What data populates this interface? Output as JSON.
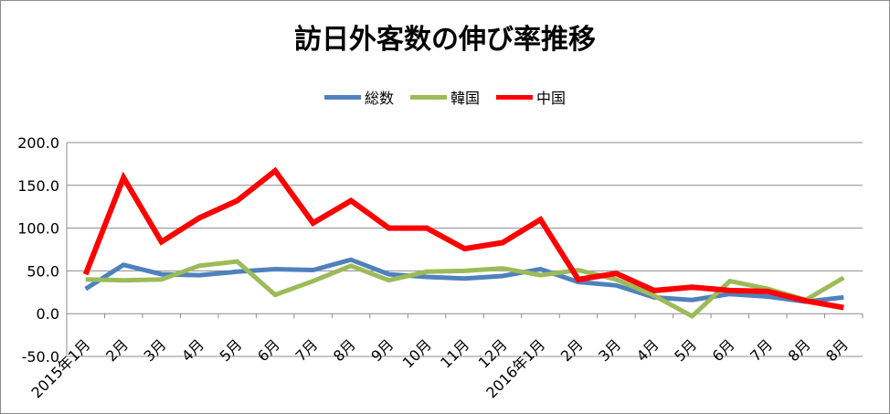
{
  "chart_data": {
    "type": "line",
    "title": "訪日外客数の伸び率推移",
    "xlabel": "",
    "ylabel": "",
    "categories": [
      "2015年1月",
      "2月",
      "3月",
      "4月",
      "5月",
      "6月",
      "7月",
      "8月",
      "9月",
      "10月",
      "11月",
      "12月",
      "2016年1月",
      "2月",
      "3月",
      "4月",
      "5月",
      "6月",
      "7月",
      "8月",
      "8月"
    ],
    "ylim": [
      -50,
      200
    ],
    "yticks": [
      "200.0",
      "150.0",
      "100.0",
      "50.0",
      "0.0",
      "-50.0"
    ],
    "ytick_values": [
      200,
      150,
      100,
      50,
      0,
      -50
    ],
    "grid": true,
    "legend_position": "top",
    "series": [
      {
        "name": "総数",
        "color": "#4f81bd",
        "values": [
          29,
          57,
          46,
          45,
          49,
          52,
          51,
          63,
          46,
          43,
          41,
          44,
          52,
          37,
          33,
          19,
          16,
          23,
          20,
          14,
          19
        ]
      },
      {
        "name": "韓国",
        "color": "#9bbb59",
        "values": [
          40,
          39,
          40,
          56,
          61,
          22,
          38,
          56,
          39,
          49,
          50,
          53,
          45,
          51,
          40,
          21,
          -3,
          38,
          29,
          16,
          42
        ]
      },
      {
        "name": "中国",
        "color": "#ff0000",
        "values": [
          46,
          159,
          84,
          112,
          132,
          167,
          106,
          132,
          100,
          100,
          76,
          83,
          110,
          40,
          47,
          27,
          31,
          27,
          26,
          15,
          7
        ]
      }
    ]
  }
}
